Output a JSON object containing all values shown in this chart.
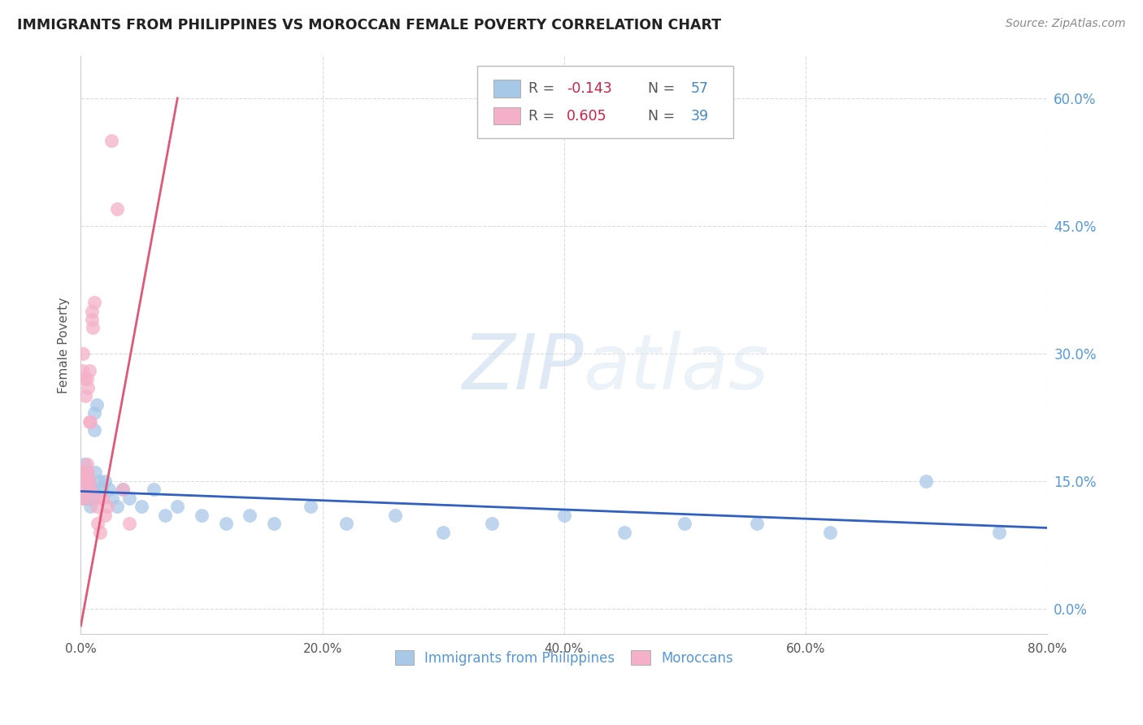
{
  "title": "IMMIGRANTS FROM PHILIPPINES VS MOROCCAN FEMALE POVERTY CORRELATION CHART",
  "source": "Source: ZipAtlas.com",
  "ylabel": "Female Poverty",
  "xlabel_ticks": [
    "0.0%",
    "",
    "",
    "",
    "20.0%",
    "",
    "",
    "",
    "40.0%",
    "",
    "",
    "",
    "60.0%",
    "",
    "",
    "",
    "80.0%"
  ],
  "xlabel_vals": [
    0.0,
    0.05,
    0.1,
    0.15,
    0.2,
    0.25,
    0.3,
    0.35,
    0.4,
    0.45,
    0.5,
    0.55,
    0.6,
    0.65,
    0.7,
    0.75,
    0.8
  ],
  "ylabel_ticks_right": [
    "0.0%",
    "15.0%",
    "30.0%",
    "45.0%",
    "60.0%"
  ],
  "ylabel_vals": [
    0.0,
    0.15,
    0.3,
    0.45,
    0.6
  ],
  "xlim": [
    0.0,
    0.8
  ],
  "ylim": [
    -0.03,
    0.65
  ],
  "blue_R": -0.143,
  "blue_N": 57,
  "pink_R": 0.605,
  "pink_N": 39,
  "blue_color": "#a8c8e8",
  "pink_color": "#f4b0c8",
  "blue_line_color": "#3060c0",
  "pink_line_color": "#e05878",
  "watermark_zip": "ZIP",
  "watermark_atlas": "atlas",
  "blue_scatter_x": [
    0.001,
    0.002,
    0.002,
    0.003,
    0.003,
    0.003,
    0.004,
    0.004,
    0.005,
    0.005,
    0.005,
    0.006,
    0.006,
    0.006,
    0.007,
    0.007,
    0.007,
    0.008,
    0.008,
    0.008,
    0.009,
    0.009,
    0.01,
    0.01,
    0.011,
    0.011,
    0.012,
    0.012,
    0.013,
    0.015,
    0.017,
    0.02,
    0.023,
    0.026,
    0.03,
    0.035,
    0.04,
    0.05,
    0.06,
    0.07,
    0.08,
    0.1,
    0.12,
    0.14,
    0.16,
    0.19,
    0.22,
    0.26,
    0.3,
    0.34,
    0.4,
    0.45,
    0.5,
    0.56,
    0.62,
    0.7,
    0.76
  ],
  "blue_scatter_y": [
    0.14,
    0.14,
    0.16,
    0.13,
    0.14,
    0.17,
    0.13,
    0.14,
    0.13,
    0.15,
    0.16,
    0.13,
    0.14,
    0.15,
    0.13,
    0.14,
    0.15,
    0.12,
    0.13,
    0.14,
    0.13,
    0.14,
    0.13,
    0.14,
    0.23,
    0.21,
    0.14,
    0.16,
    0.24,
    0.15,
    0.14,
    0.15,
    0.14,
    0.13,
    0.12,
    0.14,
    0.13,
    0.12,
    0.14,
    0.11,
    0.12,
    0.11,
    0.1,
    0.11,
    0.1,
    0.12,
    0.1,
    0.11,
    0.09,
    0.1,
    0.11,
    0.09,
    0.1,
    0.1,
    0.09,
    0.15,
    0.09
  ],
  "pink_scatter_x": [
    0.001,
    0.001,
    0.001,
    0.002,
    0.002,
    0.002,
    0.003,
    0.003,
    0.003,
    0.004,
    0.004,
    0.004,
    0.005,
    0.005,
    0.005,
    0.005,
    0.006,
    0.006,
    0.006,
    0.007,
    0.007,
    0.007,
    0.008,
    0.008,
    0.009,
    0.009,
    0.01,
    0.011,
    0.012,
    0.013,
    0.014,
    0.016,
    0.018,
    0.02,
    0.022,
    0.025,
    0.03,
    0.035,
    0.04
  ],
  "pink_scatter_y": [
    0.13,
    0.14,
    0.28,
    0.14,
    0.16,
    0.3,
    0.13,
    0.15,
    0.27,
    0.14,
    0.16,
    0.25,
    0.14,
    0.15,
    0.17,
    0.27,
    0.14,
    0.16,
    0.26,
    0.15,
    0.22,
    0.28,
    0.14,
    0.22,
    0.35,
    0.34,
    0.33,
    0.36,
    0.13,
    0.12,
    0.1,
    0.09,
    0.13,
    0.11,
    0.12,
    0.55,
    0.47,
    0.14,
    0.1
  ],
  "pink_line_x": [
    0.0,
    0.08
  ],
  "pink_line_y": [
    -0.02,
    0.6
  ],
  "blue_line_x": [
    0.0,
    0.8
  ],
  "blue_line_y": [
    0.138,
    0.095
  ]
}
